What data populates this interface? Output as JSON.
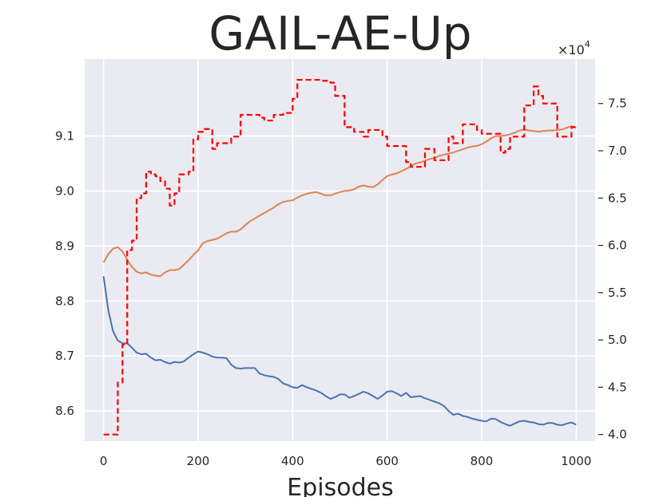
{
  "chart_data": {
    "type": "line",
    "title": "GAIL-AE-Up",
    "xlabel": "Episodes",
    "ylabel": "",
    "xlim": [
      -40,
      1040
    ],
    "xticks": [
      0,
      200,
      400,
      600,
      800,
      1000
    ],
    "xtick_labels": [
      "0",
      "200",
      "400",
      "600",
      "800",
      "1000"
    ],
    "left_axis": {
      "ylim": [
        8.545,
        9.24
      ],
      "ticks": [
        8.6,
        8.7,
        8.8,
        8.9,
        9.0,
        9.1
      ],
      "tick_labels": [
        "8.6",
        "8.7",
        "8.8",
        "8.9",
        "9.0",
        "9.1"
      ]
    },
    "right_axis": {
      "ylim": [
        3.93,
        7.97
      ],
      "ticks": [
        4.0,
        4.5,
        5.0,
        5.5,
        6.0,
        6.5,
        7.0,
        7.5
      ],
      "tick_labels": [
        "4.0",
        "4.5",
        "5.0",
        "5.5",
        "6.0",
        "6.5",
        "7.0",
        "7.5"
      ],
      "multiplier_label": "×10",
      "multiplier_exponent": "4"
    },
    "grid": true,
    "background": "#eaeaf2",
    "series": [
      {
        "axis": "left",
        "color": "#4c72b0",
        "style": "solid",
        "x": [
          0,
          10,
          20,
          30,
          40,
          50,
          60,
          70,
          80,
          90,
          100,
          110,
          120,
          130,
          140,
          150,
          160,
          170,
          180,
          190,
          200,
          210,
          220,
          230,
          240,
          250,
          260,
          270,
          280,
          290,
          300,
          310,
          320,
          330,
          340,
          350,
          360,
          370,
          380,
          390,
          400,
          410,
          420,
          430,
          440,
          450,
          460,
          470,
          480,
          490,
          500,
          510,
          520,
          530,
          540,
          550,
          560,
          570,
          580,
          590,
          600,
          610,
          620,
          630,
          640,
          650,
          660,
          670,
          680,
          690,
          700,
          710,
          720,
          730,
          740,
          750,
          760,
          770,
          780,
          790,
          800,
          810,
          820,
          830,
          840,
          850,
          860,
          870,
          880,
          890,
          900,
          910,
          920,
          930,
          940,
          950,
          960,
          970,
          980,
          990,
          1000
        ],
        "values": [
          8.845,
          8.783,
          8.745,
          8.728,
          8.723,
          8.723,
          8.715,
          8.706,
          8.703,
          8.704,
          8.697,
          8.692,
          8.693,
          8.689,
          8.686,
          8.689,
          8.688,
          8.69,
          8.697,
          8.703,
          8.708,
          8.706,
          8.703,
          8.699,
          8.697,
          8.697,
          8.696,
          8.684,
          8.678,
          8.677,
          8.678,
          8.678,
          8.678,
          8.668,
          8.665,
          8.663,
          8.662,
          8.658,
          8.65,
          8.647,
          8.643,
          8.642,
          8.647,
          8.643,
          8.64,
          8.637,
          8.633,
          8.627,
          8.622,
          8.625,
          8.63,
          8.63,
          8.624,
          8.627,
          8.631,
          8.635,
          8.632,
          8.627,
          8.622,
          8.628,
          8.635,
          8.636,
          8.632,
          8.627,
          8.633,
          8.625,
          8.626,
          8.627,
          8.623,
          8.62,
          8.617,
          8.614,
          8.609,
          8.6,
          8.593,
          8.595,
          8.591,
          8.589,
          8.586,
          8.584,
          8.582,
          8.581,
          8.586,
          8.585,
          8.58,
          8.576,
          8.573,
          8.577,
          8.581,
          8.582,
          8.58,
          8.579,
          8.576,
          8.575,
          8.578,
          8.578,
          8.575,
          8.574,
          8.577,
          8.579,
          8.575
        ]
      },
      {
        "axis": "left",
        "color": "#dd8452",
        "style": "solid",
        "x": [
          0,
          10,
          20,
          30,
          40,
          50,
          60,
          70,
          80,
          90,
          100,
          110,
          120,
          130,
          140,
          150,
          160,
          170,
          180,
          190,
          200,
          210,
          220,
          230,
          240,
          250,
          260,
          270,
          280,
          290,
          300,
          310,
          320,
          330,
          340,
          350,
          360,
          370,
          380,
          390,
          400,
          410,
          420,
          430,
          440,
          450,
          460,
          470,
          480,
          490,
          500,
          510,
          520,
          530,
          540,
          550,
          560,
          570,
          580,
          590,
          600,
          610,
          620,
          630,
          640,
          650,
          660,
          670,
          680,
          690,
          700,
          710,
          720,
          730,
          740,
          750,
          760,
          770,
          780,
          790,
          800,
          810,
          820,
          830,
          840,
          850,
          860,
          870,
          880,
          890,
          900,
          910,
          920,
          930,
          940,
          950,
          960,
          970,
          980,
          990,
          1000
        ],
        "values": [
          8.87,
          8.885,
          8.895,
          8.898,
          8.89,
          8.875,
          8.862,
          8.853,
          8.85,
          8.852,
          8.848,
          8.846,
          8.845,
          8.852,
          8.856,
          8.856,
          8.858,
          8.866,
          8.874,
          8.884,
          8.892,
          8.905,
          8.909,
          8.911,
          8.913,
          8.918,
          8.923,
          8.926,
          8.926,
          8.93,
          8.938,
          8.945,
          8.95,
          8.955,
          8.96,
          8.965,
          8.97,
          8.976,
          8.98,
          8.982,
          8.983,
          8.988,
          8.992,
          8.995,
          8.997,
          8.998,
          8.995,
          8.992,
          8.992,
          8.995,
          8.998,
          9.0,
          9.001,
          9.003,
          9.008,
          9.01,
          9.008,
          9.007,
          9.012,
          9.02,
          9.027,
          9.03,
          9.032,
          9.036,
          9.04,
          9.045,
          9.05,
          9.052,
          9.055,
          9.058,
          9.06,
          9.064,
          9.066,
          9.068,
          9.07,
          9.073,
          9.076,
          9.079,
          9.081,
          9.082,
          9.085,
          9.09,
          9.096,
          9.1,
          9.1,
          9.101,
          9.103,
          9.106,
          9.11,
          9.112,
          9.11,
          9.109,
          9.108,
          9.109,
          9.11,
          9.11,
          9.111,
          9.112,
          9.115,
          9.118,
          9.115
        ]
      },
      {
        "axis": "right",
        "color": "#ff0000",
        "style": "dashed",
        "x": [
          0,
          20,
          20,
          30,
          30,
          40,
          40,
          50,
          50,
          60,
          60,
          70,
          70,
          80,
          80,
          90,
          90,
          100,
          100,
          110,
          110,
          120,
          120,
          130,
          130,
          140,
          140,
          150,
          150,
          160,
          160,
          170,
          170,
          180,
          180,
          190,
          190,
          200,
          200,
          210,
          210,
          220,
          220,
          230,
          230,
          240,
          240,
          250,
          250,
          260,
          260,
          270,
          270,
          280,
          280,
          290,
          290,
          300,
          300,
          320,
          320,
          330,
          330,
          340,
          340,
          360,
          360,
          380,
          380,
          400,
          400,
          410,
          410,
          420,
          420,
          460,
          460,
          480,
          480,
          490,
          490,
          510,
          510,
          520,
          520,
          530,
          530,
          550,
          550,
          560,
          560,
          570,
          570,
          590,
          590,
          600,
          600,
          620,
          620,
          640,
          640,
          650,
          650,
          670,
          670,
          680,
          680,
          690,
          690,
          700,
          700,
          720,
          720,
          730,
          730,
          740,
          740,
          750,
          750,
          760,
          760,
          770,
          770,
          790,
          790,
          800,
          800,
          820,
          820,
          840,
          840,
          850,
          850,
          860,
          860,
          870,
          870,
          890,
          890,
          900,
          900,
          910,
          910,
          920,
          920,
          930,
          930,
          940,
          940,
          960,
          960,
          970,
          970,
          990,
          990,
          1000
        ],
        "values": [
          4.0,
          4.0,
          4.0,
          4.0,
          4.55,
          4.55,
          4.95,
          4.95,
          5.95,
          5.95,
          6.05,
          6.05,
          6.5,
          6.5,
          6.55,
          6.55,
          6.78,
          6.78,
          6.75,
          6.75,
          6.73,
          6.73,
          6.68,
          6.68,
          6.6,
          6.6,
          6.42,
          6.42,
          6.55,
          6.55,
          6.75,
          6.75,
          6.75,
          6.75,
          6.78,
          6.78,
          7.12,
          7.12,
          7.2,
          7.2,
          7.23,
          7.23,
          7.23,
          7.23,
          7.02,
          7.02,
          7.08,
          7.08,
          7.08,
          7.08,
          7.08,
          7.08,
          7.15,
          7.15,
          7.15,
          7.15,
          7.38,
          7.38,
          7.38,
          7.38,
          7.38,
          7.38,
          7.35,
          7.35,
          7.32,
          7.32,
          7.38,
          7.38,
          7.4,
          7.4,
          7.55,
          7.55,
          7.75,
          7.75,
          7.75,
          7.75,
          7.74,
          7.74,
          7.72,
          7.72,
          7.58,
          7.58,
          7.25,
          7.25,
          7.25,
          7.25,
          7.2,
          7.2,
          7.15,
          7.15,
          7.22,
          7.22,
          7.22,
          7.22,
          7.15,
          7.15,
          7.05,
          7.05,
          7.05,
          7.05,
          6.88,
          6.88,
          6.83,
          6.83,
          6.83,
          6.83,
          7.02,
          7.02,
          7.02,
          7.02,
          6.9,
          6.9,
          6.9,
          6.9,
          7.15,
          7.15,
          7.08,
          7.08,
          7.08,
          7.08,
          7.28,
          7.28,
          7.28,
          7.28,
          7.22,
          7.22,
          7.18,
          7.18,
          7.18,
          7.18,
          6.98,
          6.98,
          7.02,
          7.02,
          7.15,
          7.15,
          7.15,
          7.15,
          7.48,
          7.48,
          7.48,
          7.48,
          7.68,
          7.68,
          7.58,
          7.58,
          7.5,
          7.5,
          7.5,
          7.5,
          7.15,
          7.15,
          7.15,
          7.15,
          7.25,
          7.25
        ]
      }
    ]
  }
}
